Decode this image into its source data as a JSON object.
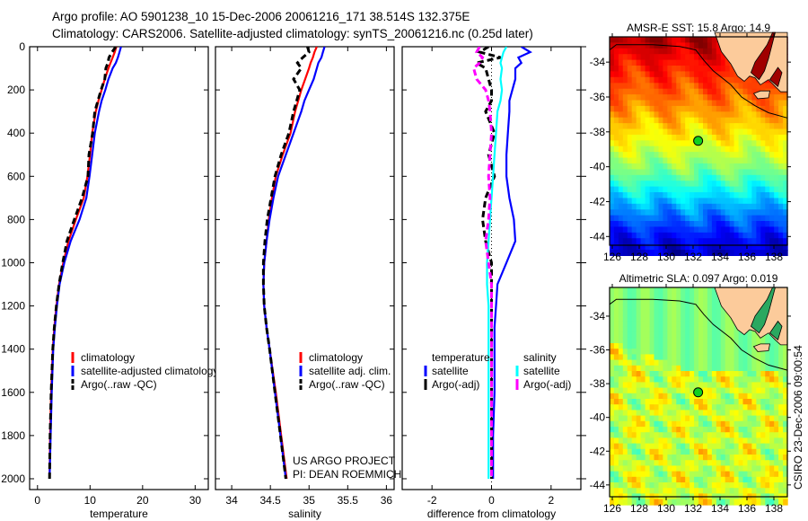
{
  "header": {
    "line1": "Argo profile: AO 5901238_10 15-Dec-2006 20061216_171 38.514S 132.375E",
    "line2": "Climatology: CARS2006. Satellite-adjusted climatology: synTS_20061216.nc (0.25d later)"
  },
  "side_stamp": "CSIRO 23-Dec-2006 09:00:54",
  "colors": {
    "climatology": "#ff0000",
    "satellite": "#0000ff",
    "argo": "#000000",
    "sal_satellite": "#00ffff",
    "sal_argo": "#ff00ff",
    "land": "#fccb9b"
  },
  "chart_data": [
    {
      "type": "line",
      "id": "temperature",
      "xlabel": "temperature",
      "ylabel": "",
      "xlim": [
        -1.5,
        32.5
      ],
      "ylim": [
        2050,
        0
      ],
      "xticks": [
        "0",
        "10",
        "20",
        "30"
      ],
      "xtick_values": [
        0,
        10,
        20,
        30
      ],
      "yticks": [
        "0",
        "200",
        "400",
        "600",
        "800",
        "1000",
        "1200",
        "1400",
        "1600",
        "1800",
        "2000"
      ],
      "ytick_values": [
        0,
        200,
        400,
        600,
        800,
        1000,
        1200,
        1400,
        1600,
        1800,
        2000
      ],
      "depth": [
        0,
        25,
        50,
        75,
        100,
        150,
        200,
        250,
        300,
        400,
        500,
        600,
        700,
        800,
        900,
        1000,
        1100,
        1200,
        1300,
        1400,
        1600,
        1800,
        2000
      ],
      "series": [
        {
          "name": "climatology",
          "color": "#ff0000",
          "dash": false,
          "values": [
            15.0,
            14.7,
            14.3,
            13.9,
            13.5,
            12.8,
            12.2,
            11.6,
            11.1,
            10.4,
            10.0,
            9.5,
            8.8,
            7.3,
            5.9,
            4.9,
            4.1,
            3.6,
            3.2,
            2.9,
            2.6,
            2.4,
            2.3
          ]
        },
        {
          "name": "satellite-adjusted climatology",
          "color": "#0000ff",
          "dash": false,
          "values": [
            15.9,
            15.6,
            15.3,
            14.9,
            14.3,
            13.5,
            12.9,
            12.2,
            11.7,
            10.9,
            10.4,
            9.9,
            9.3,
            8.0,
            6.3,
            5.1,
            4.2,
            3.7,
            3.3,
            3.0,
            2.7,
            2.5,
            2.3
          ]
        },
        {
          "name": "Argo(..raw -QC)",
          "color": "#000000",
          "dash": true,
          "values": [
            14.9,
            14.2,
            13.6,
            13.4,
            13.0,
            12.8,
            12.1,
            11.5,
            10.9,
            10.5,
            9.8,
            9.6,
            8.5,
            7.0,
            5.6,
            4.8,
            4.1,
            3.6,
            3.2,
            2.9,
            2.6,
            2.4,
            2.3
          ]
        }
      ],
      "legend": [
        "climatology",
        "satellite-adjusted climatology",
        "Argo(..raw -QC)"
      ]
    },
    {
      "type": "line",
      "id": "salinity",
      "xlabel": "salinity",
      "ylabel": "",
      "xlim": [
        33.79,
        36.1
      ],
      "ylim": [
        2050,
        0
      ],
      "xticks": [
        "34",
        "34.5",
        "35",
        "35.5",
        "36"
      ],
      "xtick_values": [
        34,
        34.5,
        35,
        35.5,
        36
      ],
      "depth": [
        0,
        25,
        50,
        75,
        100,
        150,
        200,
        250,
        300,
        400,
        500,
        600,
        700,
        800,
        900,
        1000,
        1100,
        1200,
        1300,
        1400,
        1600,
        1800,
        2000
      ],
      "series": [
        {
          "name": "climatology",
          "color": "#ff0000",
          "dash": false,
          "values": [
            35.1,
            35.07,
            35.05,
            35.02,
            35.0,
            34.95,
            34.9,
            34.86,
            34.82,
            34.76,
            34.66,
            34.57,
            34.52,
            34.48,
            34.45,
            34.42,
            34.41,
            34.42,
            34.45,
            34.49,
            34.57,
            34.64,
            34.71
          ]
        },
        {
          "name": "satellite adj. clim.",
          "color": "#0000ff",
          "dash": false,
          "values": [
            35.2,
            35.18,
            35.16,
            35.12,
            35.1,
            35.06,
            35.0,
            34.94,
            34.9,
            34.8,
            34.7,
            34.6,
            34.54,
            34.49,
            34.45,
            34.42,
            34.41,
            34.42,
            34.45,
            34.49,
            34.56,
            34.63,
            34.7
          ]
        },
        {
          "name": "Argo(..raw -QC)",
          "color": "#000000",
          "dash": true,
          "values": [
            34.98,
            35.0,
            34.92,
            34.85,
            34.9,
            34.8,
            34.88,
            34.84,
            34.8,
            34.74,
            34.64,
            34.56,
            34.51,
            34.46,
            34.43,
            34.41,
            34.41,
            34.42,
            34.45,
            34.49,
            34.56,
            34.63,
            34.7
          ]
        }
      ],
      "legend": [
        "climatology",
        "satellite adj. clim.",
        "Argo(..raw -QC)"
      ],
      "annotation": [
        "US ARGO PROJECT",
        "PI: DEAN ROEMMICH"
      ]
    },
    {
      "type": "line",
      "id": "difference",
      "xlabel": "difference from climatology",
      "ylabel": "",
      "xlim": [
        -3,
        3
      ],
      "ylim": [
        2050,
        0
      ],
      "xticks": [
        "-2",
        "0",
        "2"
      ],
      "xtick_values": [
        -2,
        0,
        2
      ],
      "depth": [
        0,
        25,
        50,
        75,
        100,
        150,
        200,
        250,
        300,
        400,
        500,
        600,
        700,
        800,
        900,
        1000,
        1100,
        1200,
        1300,
        1400,
        1600,
        1800,
        2000
      ],
      "series": [
        {
          "name": "temperature satellite",
          "color": "#0000ff",
          "dash": false,
          "values": [
            1.0,
            1.3,
            0.9,
            1.0,
            0.8,
            0.8,
            0.7,
            0.6,
            0.6,
            0.55,
            0.5,
            0.5,
            0.6,
            0.75,
            0.8,
            0.5,
            0.2,
            0.15,
            0.1,
            0.1,
            0.1,
            0.05,
            0.05
          ]
        },
        {
          "name": "temperature Argo(-adj)",
          "color": "#000000",
          "dash": true,
          "values": [
            -0.1,
            -0.4,
            0.3,
            -0.5,
            -0.2,
            -0.1,
            0.0,
            0.0,
            -0.2,
            0.1,
            -0.1,
            0.1,
            -0.2,
            -0.3,
            -0.2,
            0.0,
            0.0,
            0.0,
            0.0,
            0.0,
            0.0,
            0.0,
            0.0
          ]
        },
        {
          "name": "salinity satellite",
          "color": "#00ffff",
          "dash": false,
          "values": [
            0.5,
            0.4,
            0.35,
            0.3,
            0.35,
            0.3,
            0.35,
            0.3,
            0.2,
            0.15,
            0.1,
            0.05,
            0.0,
            -0.05,
            -0.1,
            -0.15,
            -0.15,
            -0.1,
            -0.1,
            -0.1,
            -0.1,
            -0.1,
            -0.1
          ]
        },
        {
          "name": "salinity Argo(-adj)",
          "color": "#ff00ff",
          "dash": true,
          "values": [
            -0.4,
            -0.5,
            -0.3,
            -0.4,
            -0.6,
            -0.5,
            -0.2,
            -0.1,
            -0.05,
            0.0,
            -0.05,
            -0.1,
            -0.05,
            -0.1,
            -0.2,
            -0.1,
            0,
            0,
            0,
            0,
            0,
            0,
            0
          ]
        }
      ],
      "legend_temperature": {
        "title": "temperature",
        "items": [
          "satellite",
          "Argo(-adj)"
        ]
      },
      "legend_salinity": {
        "title": "salinity",
        "items": [
          "satellite",
          "Argo(-adj)"
        ]
      }
    },
    {
      "type": "heatmap",
      "id": "sst_map",
      "title": "AMSR-E SST: 15.8 Argo: 14.9",
      "xlim": [
        125.8,
        139.0
      ],
      "ylim": [
        -44.5,
        -32.55
      ],
      "xticks": [
        "126",
        "128",
        "130",
        "132",
        "134",
        "136",
        "138"
      ],
      "xtick_values": [
        126,
        128,
        130,
        132,
        134,
        136,
        138
      ],
      "yticks": [
        "-34",
        "-36",
        "-38",
        "-40",
        "-42",
        "-44"
      ],
      "ytick_values": [
        -34,
        -36,
        -38,
        -40,
        -42,
        -44
      ],
      "profile_location": {
        "lon": 132.375,
        "lat": -38.514
      }
    },
    {
      "type": "heatmap",
      "id": "sla_map",
      "title": "Altimetric SLA: 0.097 Argo: 0.019",
      "xlim": [
        125.8,
        139.0
      ],
      "ylim": [
        -44.7,
        -32.3
      ],
      "xticks": [
        "126",
        "128",
        "130",
        "132",
        "134",
        "136",
        "138"
      ],
      "xtick_values": [
        126,
        128,
        130,
        132,
        134,
        136,
        138
      ],
      "yticks": [
        "-34",
        "-36",
        "-38",
        "-40",
        "-42",
        "-44"
      ],
      "ytick_values": [
        -34,
        -36,
        -38,
        -40,
        -42,
        -44
      ],
      "profile_location": {
        "lon": 132.375,
        "lat": -38.514
      }
    }
  ]
}
